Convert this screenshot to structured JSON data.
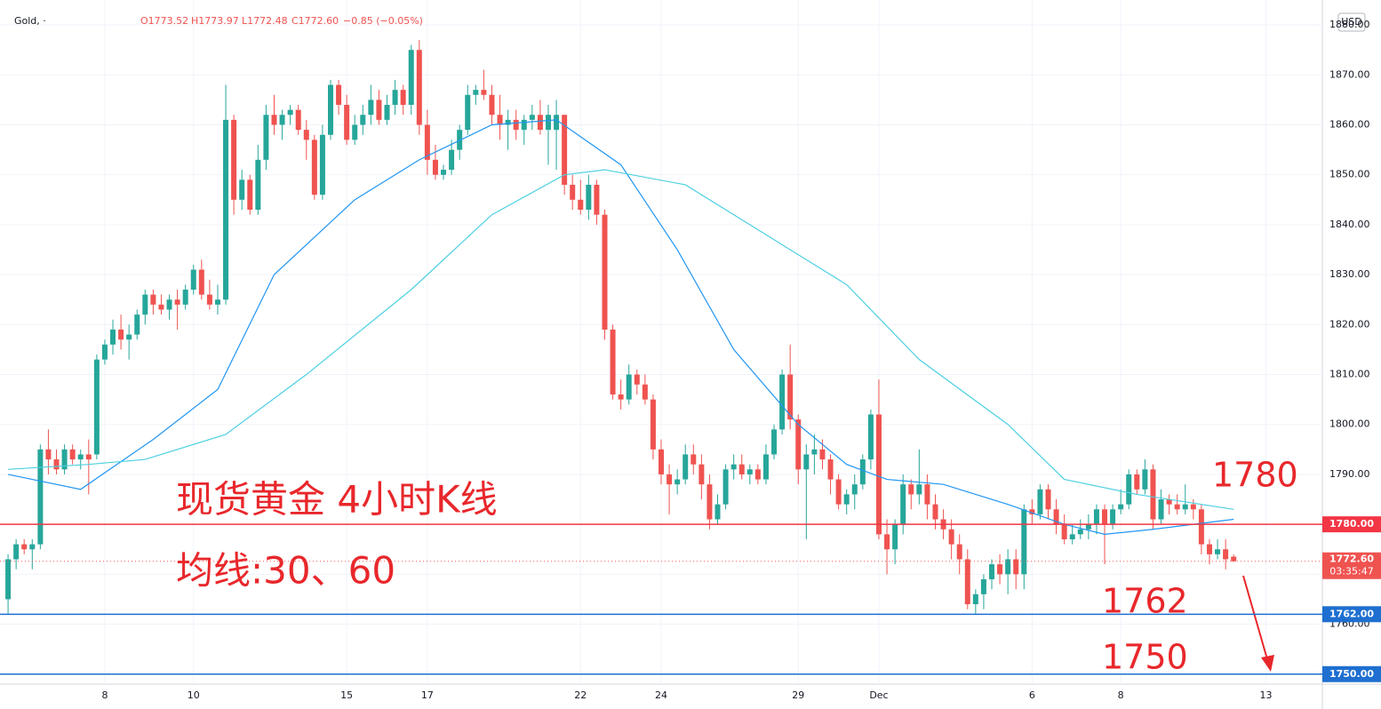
{
  "chart_data": {
    "type": "candlestick",
    "header": {
      "symbol": "Gold, ·",
      "open": "O1773.52",
      "high": "H1773.97",
      "low": "L1772.48",
      "close": "C1772.60",
      "change": "−0.85 (−0.05%)"
    },
    "currency": "USD",
    "up_color": "#26a69a",
    "down_color": "#ef5350",
    "ylim": [
      1748,
      1885
    ],
    "yticks": [
      {
        "value": 1760,
        "label": "1760.00"
      },
      {
        "value": 1770,
        "label": "1770.00"
      },
      {
        "value": 1780,
        "label": "1780.00"
      },
      {
        "value": 1790,
        "label": "1790.00"
      },
      {
        "value": 1800,
        "label": "1800.00"
      },
      {
        "value": 1810,
        "label": "1810.00"
      },
      {
        "value": 1820,
        "label": "1820.00"
      },
      {
        "value": 1830,
        "label": "1830.00"
      },
      {
        "value": 1840,
        "label": "1840.00"
      },
      {
        "value": 1850,
        "label": "1850.00"
      },
      {
        "value": 1860,
        "label": "1860.00"
      },
      {
        "value": 1870,
        "label": "1870.00"
      },
      {
        "value": 1880,
        "label": "1880.00"
      }
    ],
    "xlim": [
      -1,
      163
    ],
    "xticks": [
      {
        "value": 12,
        "label": "8"
      },
      {
        "value": 23,
        "label": "10"
      },
      {
        "value": 42,
        "label": "15"
      },
      {
        "value": 52,
        "label": "17"
      },
      {
        "value": 71,
        "label": "22"
      },
      {
        "value": 81,
        "label": "24"
      },
      {
        "value": 98,
        "label": "29"
      },
      {
        "value": 108,
        "label": "Dec"
      },
      {
        "value": 127,
        "label": "6"
      },
      {
        "value": 138,
        "label": "8"
      },
      {
        "value": 156,
        "label": "13"
      }
    ],
    "ohlc": [
      [
        1765,
        1774,
        1762,
        1773
      ],
      [
        1773,
        1777,
        1771,
        1776
      ],
      [
        1776,
        1777,
        1774,
        1775
      ],
      [
        1775,
        1777,
        1771,
        1776
      ],
      [
        1776,
        1796,
        1775,
        1795
      ],
      [
        1795,
        1799,
        1790,
        1793
      ],
      [
        1793,
        1795,
        1790,
        1791
      ],
      [
        1791,
        1796,
        1790,
        1795
      ],
      [
        1795,
        1796,
        1792,
        1793
      ],
      [
        1793,
        1795,
        1791,
        1794
      ],
      [
        1794,
        1797,
        1786,
        1793
      ],
      [
        1794,
        1814,
        1793,
        1813
      ],
      [
        1813,
        1817,
        1812,
        1816
      ],
      [
        1816,
        1821,
        1814,
        1819
      ],
      [
        1819,
        1822,
        1815,
        1817
      ],
      [
        1817,
        1820,
        1813,
        1818
      ],
      [
        1818,
        1823,
        1817,
        1822
      ],
      [
        1822,
        1827,
        1820,
        1826
      ],
      [
        1826,
        1827,
        1822,
        1824
      ],
      [
        1824,
        1826,
        1822,
        1823
      ],
      [
        1823,
        1826,
        1821,
        1825
      ],
      [
        1825,
        1827,
        1819,
        1824
      ],
      [
        1824,
        1828,
        1823,
        1827
      ],
      [
        1827,
        1832,
        1826,
        1831
      ],
      [
        1831,
        1833,
        1825,
        1826
      ],
      [
        1826,
        1829,
        1823,
        1824
      ],
      [
        1824,
        1828,
        1822,
        1825
      ],
      [
        1825,
        1868,
        1824,
        1861
      ],
      [
        1861,
        1862,
        1842,
        1845
      ],
      [
        1845,
        1851,
        1843,
        1849
      ],
      [
        1849,
        1850,
        1842,
        1843
      ],
      [
        1843,
        1856,
        1842,
        1853
      ],
      [
        1853,
        1864,
        1851,
        1862
      ],
      [
        1862,
        1866,
        1858,
        1860
      ],
      [
        1860,
        1863,
        1857,
        1862
      ],
      [
        1862,
        1864,
        1860,
        1863
      ],
      [
        1863,
        1864,
        1858,
        1859
      ],
      [
        1859,
        1861,
        1853,
        1857
      ],
      [
        1857,
        1858,
        1845,
        1846
      ],
      [
        1846,
        1860,
        1845,
        1858
      ],
      [
        1858,
        1869,
        1857,
        1868
      ],
      [
        1868,
        1869,
        1862,
        1864
      ],
      [
        1864,
        1866,
        1856,
        1857
      ],
      [
        1857,
        1862,
        1856,
        1860
      ],
      [
        1860,
        1864,
        1858,
        1862
      ],
      [
        1862,
        1868,
        1860,
        1865
      ],
      [
        1865,
        1867,
        1860,
        1861
      ],
      [
        1861,
        1866,
        1860,
        1864
      ],
      [
        1864,
        1869,
        1862,
        1867
      ],
      [
        1867,
        1868,
        1862,
        1864
      ],
      [
        1864,
        1876,
        1862,
        1875
      ],
      [
        1875,
        1877,
        1858,
        1860
      ],
      [
        1860,
        1863,
        1850,
        1853
      ],
      [
        1853,
        1856,
        1849,
        1850
      ],
      [
        1850,
        1852,
        1849,
        1851
      ],
      [
        1851,
        1857,
        1850,
        1855
      ],
      [
        1855,
        1860,
        1853,
        1859
      ],
      [
        1859,
        1868,
        1858,
        1866
      ],
      [
        1866,
        1868,
        1864,
        1867
      ],
      [
        1867,
        1871,
        1865,
        1866
      ],
      [
        1866,
        1868,
        1860,
        1862
      ],
      [
        1862,
        1866,
        1857,
        1860
      ],
      [
        1860,
        1863,
        1855,
        1861
      ],
      [
        1861,
        1863,
        1857,
        1859
      ],
      [
        1859,
        1862,
        1856,
        1861
      ],
      [
        1861,
        1864,
        1859,
        1862
      ],
      [
        1862,
        1865,
        1858,
        1859
      ],
      [
        1859,
        1864,
        1852,
        1862
      ],
      [
        1859,
        1865,
        1851,
        1862
      ],
      [
        1862,
        1862,
        1846,
        1848
      ],
      [
        1848,
        1850,
        1843,
        1845
      ],
      [
        1845,
        1849,
        1842,
        1843
      ],
      [
        1843,
        1850,
        1841,
        1848
      ],
      [
        1848,
        1849,
        1840,
        1842
      ],
      [
        1842,
        1843,
        1817,
        1819
      ],
      [
        1819,
        1820,
        1805,
        1806
      ],
      [
        1806,
        1809,
        1803,
        1805
      ],
      [
        1805,
        1812,
        1804,
        1810
      ],
      [
        1810,
        1811,
        1806,
        1808
      ],
      [
        1808,
        1810,
        1804,
        1805
      ],
      [
        1805,
        1806,
        1793,
        1795
      ],
      [
        1795,
        1797,
        1788,
        1790
      ],
      [
        1790,
        1792,
        1782,
        1788
      ],
      [
        1788,
        1791,
        1786,
        1789
      ],
      [
        1789,
        1796,
        1788,
        1794
      ],
      [
        1794,
        1796,
        1790,
        1792
      ],
      [
        1792,
        1794,
        1785,
        1788
      ],
      [
        1788,
        1790,
        1779,
        1781
      ],
      [
        1781,
        1786,
        1780,
        1784
      ],
      [
        1784,
        1792,
        1783,
        1791
      ],
      [
        1791,
        1794,
        1789,
        1792
      ],
      [
        1792,
        1794,
        1789,
        1790
      ],
      [
        1790,
        1792,
        1788,
        1791
      ],
      [
        1791,
        1792,
        1788,
        1789
      ],
      [
        1789,
        1796,
        1788,
        1794
      ],
      [
        1794,
        1800,
        1793,
        1799
      ],
      [
        1799,
        1811,
        1798,
        1810
      ],
      [
        1810,
        1816,
        1799,
        1801
      ],
      [
        1801,
        1802,
        1788,
        1791
      ],
      [
        1791,
        1796,
        1777,
        1794
      ],
      [
        1794,
        1798,
        1790,
        1795
      ],
      [
        1795,
        1797,
        1791,
        1793
      ],
      [
        1793,
        1794,
        1786,
        1789
      ],
      [
        1789,
        1790,
        1783,
        1784
      ],
      [
        1784,
        1787,
        1782,
        1786
      ],
      [
        1786,
        1790,
        1783,
        1788
      ],
      [
        1788,
        1794,
        1787,
        1793
      ],
      [
        1793,
        1803,
        1791,
        1802
      ],
      [
        1802,
        1809,
        1777,
        1778
      ],
      [
        1778,
        1781,
        1770,
        1775
      ],
      [
        1775,
        1781,
        1772,
        1780
      ],
      [
        1780,
        1790,
        1778,
        1788
      ],
      [
        1788,
        1789,
        1783,
        1786
      ],
      [
        1786,
        1795,
        1784,
        1788
      ],
      [
        1788,
        1790,
        1781,
        1784
      ],
      [
        1784,
        1786,
        1779,
        1781
      ],
      [
        1781,
        1783,
        1777,
        1779
      ],
      [
        1779,
        1781,
        1773,
        1776
      ],
      [
        1776,
        1778,
        1770,
        1773
      ],
      [
        1773,
        1775,
        1763,
        1764
      ],
      [
        1764,
        1767,
        1762,
        1766
      ],
      [
        1766,
        1770,
        1763,
        1769
      ],
      [
        1769,
        1773,
        1767,
        1772
      ],
      [
        1772,
        1774,
        1768,
        1770
      ],
      [
        1770,
        1775,
        1766,
        1773
      ],
      [
        1773,
        1775,
        1767,
        1770
      ],
      [
        1770,
        1784,
        1767,
        1783
      ],
      [
        1783,
        1785,
        1780,
        1782
      ],
      [
        1782,
        1788,
        1781,
        1787
      ],
      [
        1787,
        1788,
        1781,
        1783
      ],
      [
        1783,
        1785,
        1778,
        1780
      ],
      [
        1780,
        1782,
        1776,
        1777
      ],
      [
        1777,
        1780,
        1776,
        1778
      ],
      [
        1778,
        1781,
        1777,
        1779
      ],
      [
        1779,
        1782,
        1777,
        1780
      ],
      [
        1780,
        1784,
        1778,
        1783
      ],
      [
        1783,
        1784,
        1772,
        1780
      ],
      [
        1780,
        1784,
        1779,
        1783
      ],
      [
        1783,
        1787,
        1782,
        1784
      ],
      [
        1784,
        1791,
        1783,
        1790
      ],
      [
        1790,
        1791,
        1786,
        1787
      ],
      [
        1787,
        1793,
        1786,
        1791
      ],
      [
        1791,
        1792,
        1779,
        1781
      ],
      [
        1781,
        1787,
        1780,
        1785
      ],
      [
        1785,
        1786,
        1782,
        1784
      ],
      [
        1784,
        1786,
        1782,
        1783
      ],
      [
        1783,
        1788,
        1782,
        1784
      ],
      [
        1784,
        1785,
        1781,
        1783
      ],
      [
        1783,
        1784,
        1774,
        1776
      ],
      [
        1776,
        1777,
        1772,
        1774
      ],
      [
        1774,
        1777,
        1773,
        1775
      ],
      [
        1775,
        1777,
        1771,
        1773
      ],
      [
        1773.52,
        1773.97,
        1772.48,
        1772.6
      ]
    ],
    "moving_averages": [
      {
        "color": "#2196f3",
        "x": [
          0,
          9,
          18,
          26,
          33,
          43,
          51,
          60,
          68,
          76,
          83,
          90,
          98,
          104,
          109,
          116,
          124,
          131,
          136,
          142,
          152
        ],
        "values": [
          1790,
          1787,
          1797,
          1807,
          1830,
          1845,
          1853,
          1860,
          1861,
          1852,
          1835,
          1815,
          1800,
          1792,
          1789,
          1788,
          1784,
          1780,
          1778,
          1779,
          1781
        ]
      },
      {
        "color": "#4dd0e1",
        "x": [
          0,
          10,
          17,
          27,
          37,
          50,
          60,
          69,
          74,
          84,
          94,
          104,
          113,
          124,
          131,
          140,
          152
        ],
        "values": [
          1791,
          1792,
          1793,
          1798,
          1810,
          1827,
          1842,
          1850,
          1851,
          1848,
          1838,
          1828,
          1813,
          1800,
          1789,
          1786,
          1783
        ]
      }
    ],
    "levels": [
      {
        "value": 1780,
        "label": "1780.00",
        "color": "#f23645"
      },
      {
        "value": 1762,
        "label": "1762.00",
        "color": "#1e6fd0"
      },
      {
        "value": 1750,
        "label": "1750.00",
        "color": "#1e6fd0"
      }
    ],
    "price_line": {
      "value": 1772.6,
      "label": "1772.60",
      "countdown": "03:35:47",
      "color": "#ef5350"
    },
    "annotations": [
      "现货黄金 4小时K线",
      "均线:30、60",
      "1780",
      "1762",
      "1750"
    ]
  }
}
